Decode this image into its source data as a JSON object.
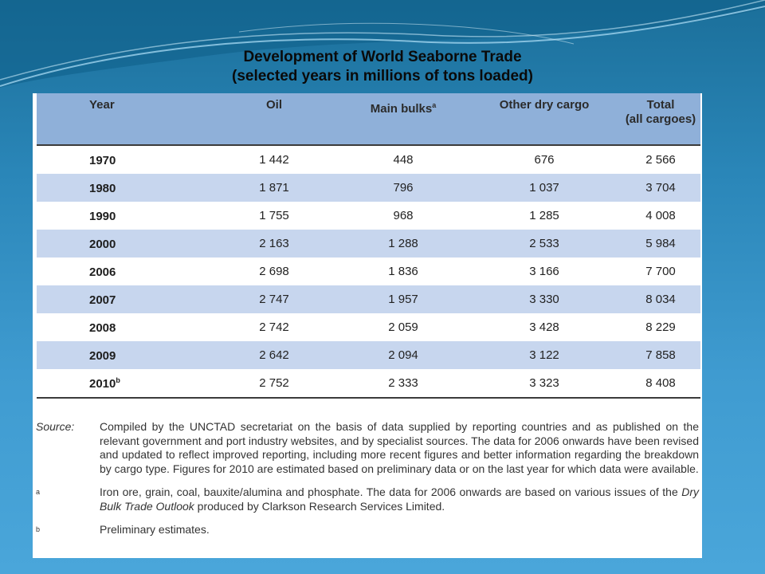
{
  "title": {
    "line1": "Development of World Seaborne Trade",
    "line2": "(selected years in millions of tons loaded)"
  },
  "table": {
    "headers": {
      "year": "Year",
      "oil": "Oil",
      "main_bulks": "Main bulks",
      "main_bulks_note": "a",
      "other_dry": "Other dry cargo",
      "total_line1": "Total",
      "total_line2": "(all cargoes)"
    },
    "rows": [
      {
        "year": "1970",
        "note": "",
        "oil": "1 442",
        "bulks": "448",
        "other": "676",
        "total": "2 566"
      },
      {
        "year": "1980",
        "note": "",
        "oil": "1 871",
        "bulks": "796",
        "other": "1 037",
        "total": "3 704"
      },
      {
        "year": "1990",
        "note": "",
        "oil": "1 755",
        "bulks": "968",
        "other": "1 285",
        "total": "4 008"
      },
      {
        "year": "2000",
        "note": "",
        "oil": "2 163",
        "bulks": "1 288",
        "other": "2 533",
        "total": "5 984"
      },
      {
        "year": "2006",
        "note": "",
        "oil": "2 698",
        "bulks": "1 836",
        "other": "3 166",
        "total": "7 700"
      },
      {
        "year": "2007",
        "note": "",
        "oil": "2 747",
        "bulks": "1 957",
        "other": "3 330",
        "total": "8 034"
      },
      {
        "year": "2008",
        "note": "",
        "oil": "2 742",
        "bulks": "2 059",
        "other": "3 428",
        "total": "8 229"
      },
      {
        "year": "2009",
        "note": "",
        "oil": "2 642",
        "bulks": "2 094",
        "other": "3 122",
        "total": "7 858"
      },
      {
        "year": "2010",
        "note": "b",
        "oil": "2 752",
        "bulks": "2 333",
        "other": "3 323",
        "total": "8 408"
      }
    ]
  },
  "notes": {
    "source_label": "Source:",
    "source_text": "Compiled by the UNCTAD secretariat on the basis of data supplied by reporting countries and as published on the relevant government and port industry websites, and by specialist sources. The data for 2006 onwards have been revised and updated to reflect improved reporting, including more recent figures and better information regarding the breakdown by cargo type. Figures for 2010 are estimated based on preliminary data or on the last year for which data were available.",
    "a_label": "a",
    "a_text_1": "Iron ore, grain, coal, bauxite/alumina and phosphate. The data for 2006 onwards are based on various issues of the ",
    "a_text_italic": "Dry Bulk Trade Outlook",
    "a_text_2": " produced by Clarkson Research Services Limited.",
    "b_label": "b",
    "b_text": "Preliminary estimates."
  }
}
